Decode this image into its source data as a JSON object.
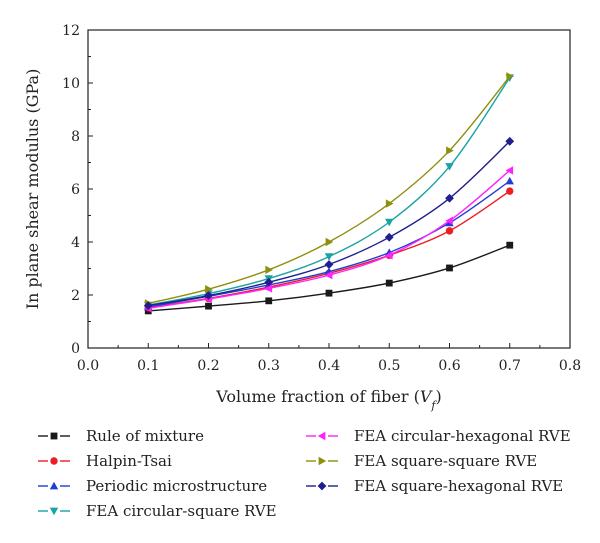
{
  "chart_data": {
    "type": "line",
    "title": "",
    "xlabel": "Volume fraction of fiber",
    "xlabel_sub": "V",
    "xlabel_sub2": "f",
    "ylabel": "In plane shear modulus (GPa)",
    "xlim": [
      0.0,
      0.8
    ],
    "ylim": [
      0,
      12
    ],
    "x_ticks": [
      "0.0",
      "0.1",
      "0.2",
      "0.3",
      "0.4",
      "0.5",
      "0.6",
      "0.7",
      "0.8"
    ],
    "y_ticks": [
      "0",
      "2",
      "4",
      "6",
      "8",
      "10",
      "12"
    ],
    "grid": false,
    "legend_placement": "bottom",
    "x": [
      0.1,
      0.2,
      0.3,
      0.4,
      0.5,
      0.6,
      0.7
    ],
    "series": [
      {
        "name": "Rule of mixture",
        "color": "#1a1a1a",
        "marker": "square",
        "values": [
          1.4,
          1.58,
          1.78,
          2.07,
          2.45,
          3.02,
          3.88
        ]
      },
      {
        "name": "Halpin-Tsai",
        "color": "#ee1c24",
        "marker": "circle",
        "values": [
          1.52,
          1.87,
          2.3,
          2.82,
          3.5,
          4.42,
          5.92
        ]
      },
      {
        "name": "Periodic microstructure",
        "color": "#1f3fd0",
        "marker": "triangle-up",
        "values": [
          1.55,
          1.95,
          2.38,
          2.88,
          3.6,
          4.72,
          6.3
        ]
      },
      {
        "name": "FEA circular-square RVE",
        "color": "#1aa3a3",
        "marker": "triangle-down",
        "values": [
          1.62,
          2.05,
          2.62,
          3.45,
          4.75,
          6.85,
          10.2
        ]
      },
      {
        "name": "FEA circular-hexagonal RVE",
        "color": "#ff22ff",
        "marker": "triangle-left",
        "values": [
          1.5,
          1.85,
          2.25,
          2.75,
          3.5,
          4.8,
          6.7
        ]
      },
      {
        "name": "FEA square-square RVE",
        "color": "#8f8f0c",
        "marker": "triangle-right",
        "values": [
          1.68,
          2.22,
          2.95,
          4.0,
          5.45,
          7.45,
          10.25
        ]
      },
      {
        "name": "FEA square-hexagonal RVE",
        "color": "#1f1f8f",
        "marker": "diamond",
        "values": [
          1.6,
          1.98,
          2.48,
          3.15,
          4.18,
          5.65,
          7.8
        ]
      }
    ]
  }
}
